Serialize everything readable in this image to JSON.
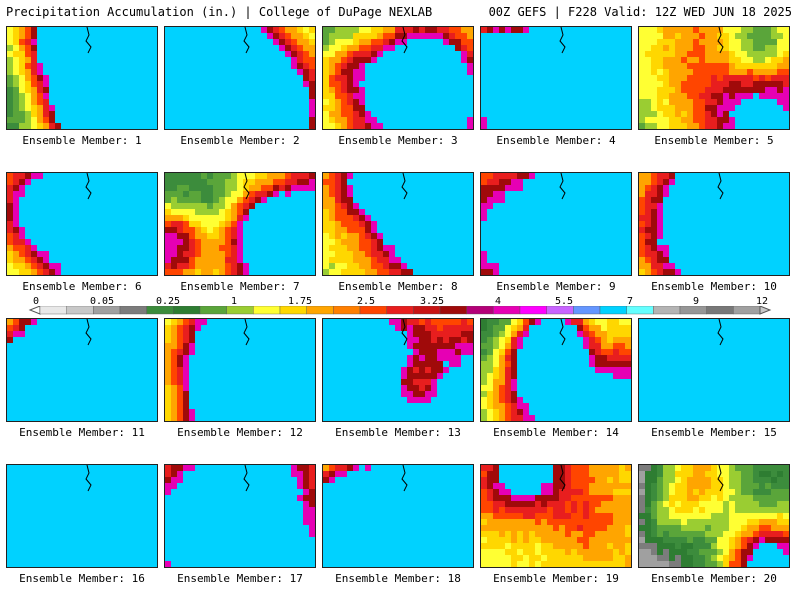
{
  "header": {
    "left_title": "Precipitation Accumulation (in.) | College of DuPage NEXLAB",
    "right_title": "00Z GEFS | F228 Valid: 12Z WED JUN 18 2025"
  },
  "colorbar": {
    "labels": [
      "0",
      "0.05",
      "0.25",
      "1",
      "1.75",
      "2.5",
      "3.25",
      "4",
      "5.5",
      "7",
      "9",
      "12"
    ],
    "colors": [
      "#e8e8e8",
      "#c8c8c8",
      "#a0a0a0",
      "#7c7c7c",
      "#3c8c3c",
      "#2e7d32",
      "#5aa53a",
      "#9acd32",
      "#ffff33",
      "#ffd700",
      "#ffa500",
      "#ff7f00",
      "#ff4500",
      "#e81e1e",
      "#c81414",
      "#a00a0a",
      "#b40078",
      "#e600b4",
      "#ff00ff",
      "#c864ff",
      "#6496ff",
      "#00d2ff",
      "#64ffff",
      "#b4b4b4",
      "#969696",
      "#787878",
      "#a0a0a0"
    ]
  },
  "members": [
    {
      "label": "Ensemble Member: 1"
    },
    {
      "label": "Ensemble Member: 2"
    },
    {
      "label": "Ensemble Member: 3"
    },
    {
      "label": "Ensemble Member: 4"
    },
    {
      "label": "Ensemble Member: 5"
    },
    {
      "label": "Ensemble Member: 6"
    },
    {
      "label": "Ensemble Member: 7"
    },
    {
      "label": "Ensemble Member: 8"
    },
    {
      "label": "Ensemble Member: 9"
    },
    {
      "label": "Ensemble Member: 10"
    },
    {
      "label": "Ensemble Member: 11"
    },
    {
      "label": "Ensemble Member: 12"
    },
    {
      "label": "Ensemble Member: 13"
    },
    {
      "label": "Ensemble Member: 14"
    },
    {
      "label": "Ensemble Member: 15"
    },
    {
      "label": "Ensemble Member: 16"
    },
    {
      "label": "Ensemble Member: 17"
    },
    {
      "label": "Ensemble Member: 18"
    },
    {
      "label": "Ensemble Member: 19"
    },
    {
      "label": "Ensemble Member: 20"
    }
  ]
}
